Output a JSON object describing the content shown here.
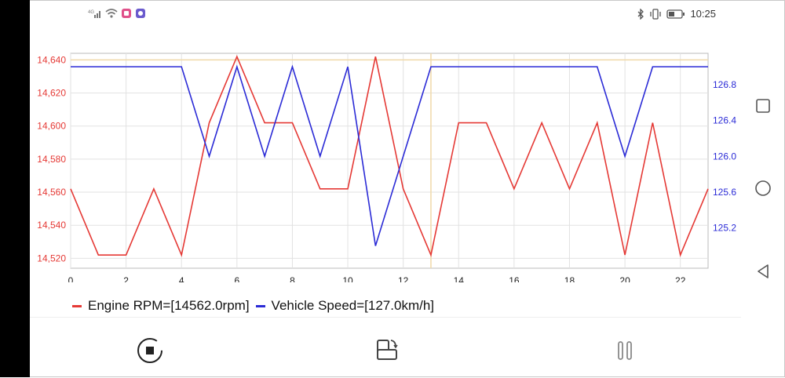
{
  "status_bar": {
    "time": "10:25",
    "left_icons": [
      "signal-icon",
      "wifi-icon",
      "app-notification-icon",
      "app-notification-icon"
    ],
    "right_icons": [
      "bluetooth-icon",
      "vibrate-icon",
      "battery-icon"
    ]
  },
  "chart_data": {
    "type": "line",
    "x": [
      0,
      1,
      2,
      3,
      4,
      5,
      6,
      7,
      8,
      9,
      10,
      11,
      12,
      13,
      14,
      15,
      16,
      17,
      18,
      19,
      20,
      21,
      22,
      23
    ],
    "xticks": [
      "0",
      "2",
      "4",
      "6",
      "8",
      "10",
      "12",
      "14",
      "16",
      "18",
      "20",
      "22"
    ],
    "xlim": [
      0,
      23
    ],
    "series": [
      {
        "name": "Engine RPM=[14562.0rpm]",
        "color": "#e53935",
        "axis": "left",
        "values": [
          14562,
          14522,
          14522,
          14562,
          14522,
          14602,
          14642,
          14602,
          14602,
          14562,
          14562,
          14642,
          14562,
          14522,
          14602,
          14602,
          14562,
          14602,
          14562,
          14602,
          14522,
          14602,
          14522,
          14562
        ]
      },
      {
        "name": "Vehicle Speed=[127.0km/h]",
        "color": "#2b2bd6",
        "axis": "right",
        "values": [
          127.0,
          127.0,
          127.0,
          127.0,
          127.0,
          126.0,
          127.0,
          126.0,
          127.0,
          126.0,
          127.0,
          125.0,
          126.0,
          127.0,
          127.0,
          127.0,
          127.0,
          127.0,
          127.0,
          127.0,
          126.0,
          127.0,
          127.0,
          127.0
        ]
      }
    ],
    "left_axis": {
      "ticks": [
        "14,520",
        "14,540",
        "14,560",
        "14,580",
        "14,600",
        "14,620",
        "14,640"
      ],
      "tick_values": [
        14520,
        14540,
        14560,
        14580,
        14600,
        14620,
        14640
      ],
      "ylim": [
        14514,
        14644
      ],
      "color": "#e53935"
    },
    "right_axis": {
      "ticks": [
        "125.2",
        "125.6",
        "126.0",
        "126.4",
        "126.8"
      ],
      "tick_values": [
        125.2,
        125.6,
        126.0,
        126.4,
        126.8
      ],
      "ylim": [
        124.75,
        127.15
      ],
      "color": "#2b2bd6"
    },
    "highlight": {
      "x": 13,
      "y_left": 14640,
      "color": "#f0d9a8"
    },
    "grid": true,
    "legend": "bottom-left"
  },
  "legend": {
    "rpm_label": "Engine RPM=[14562.0rpm]",
    "speed_label": "Vehicle Speed=[127.0km/h]"
  },
  "toolbar": {
    "buttons": [
      "stop-record-icon",
      "screen-rotate-icon",
      "pause-icon"
    ]
  },
  "navigation": {
    "buttons": [
      "recents-icon",
      "home-icon",
      "back-icon"
    ]
  }
}
